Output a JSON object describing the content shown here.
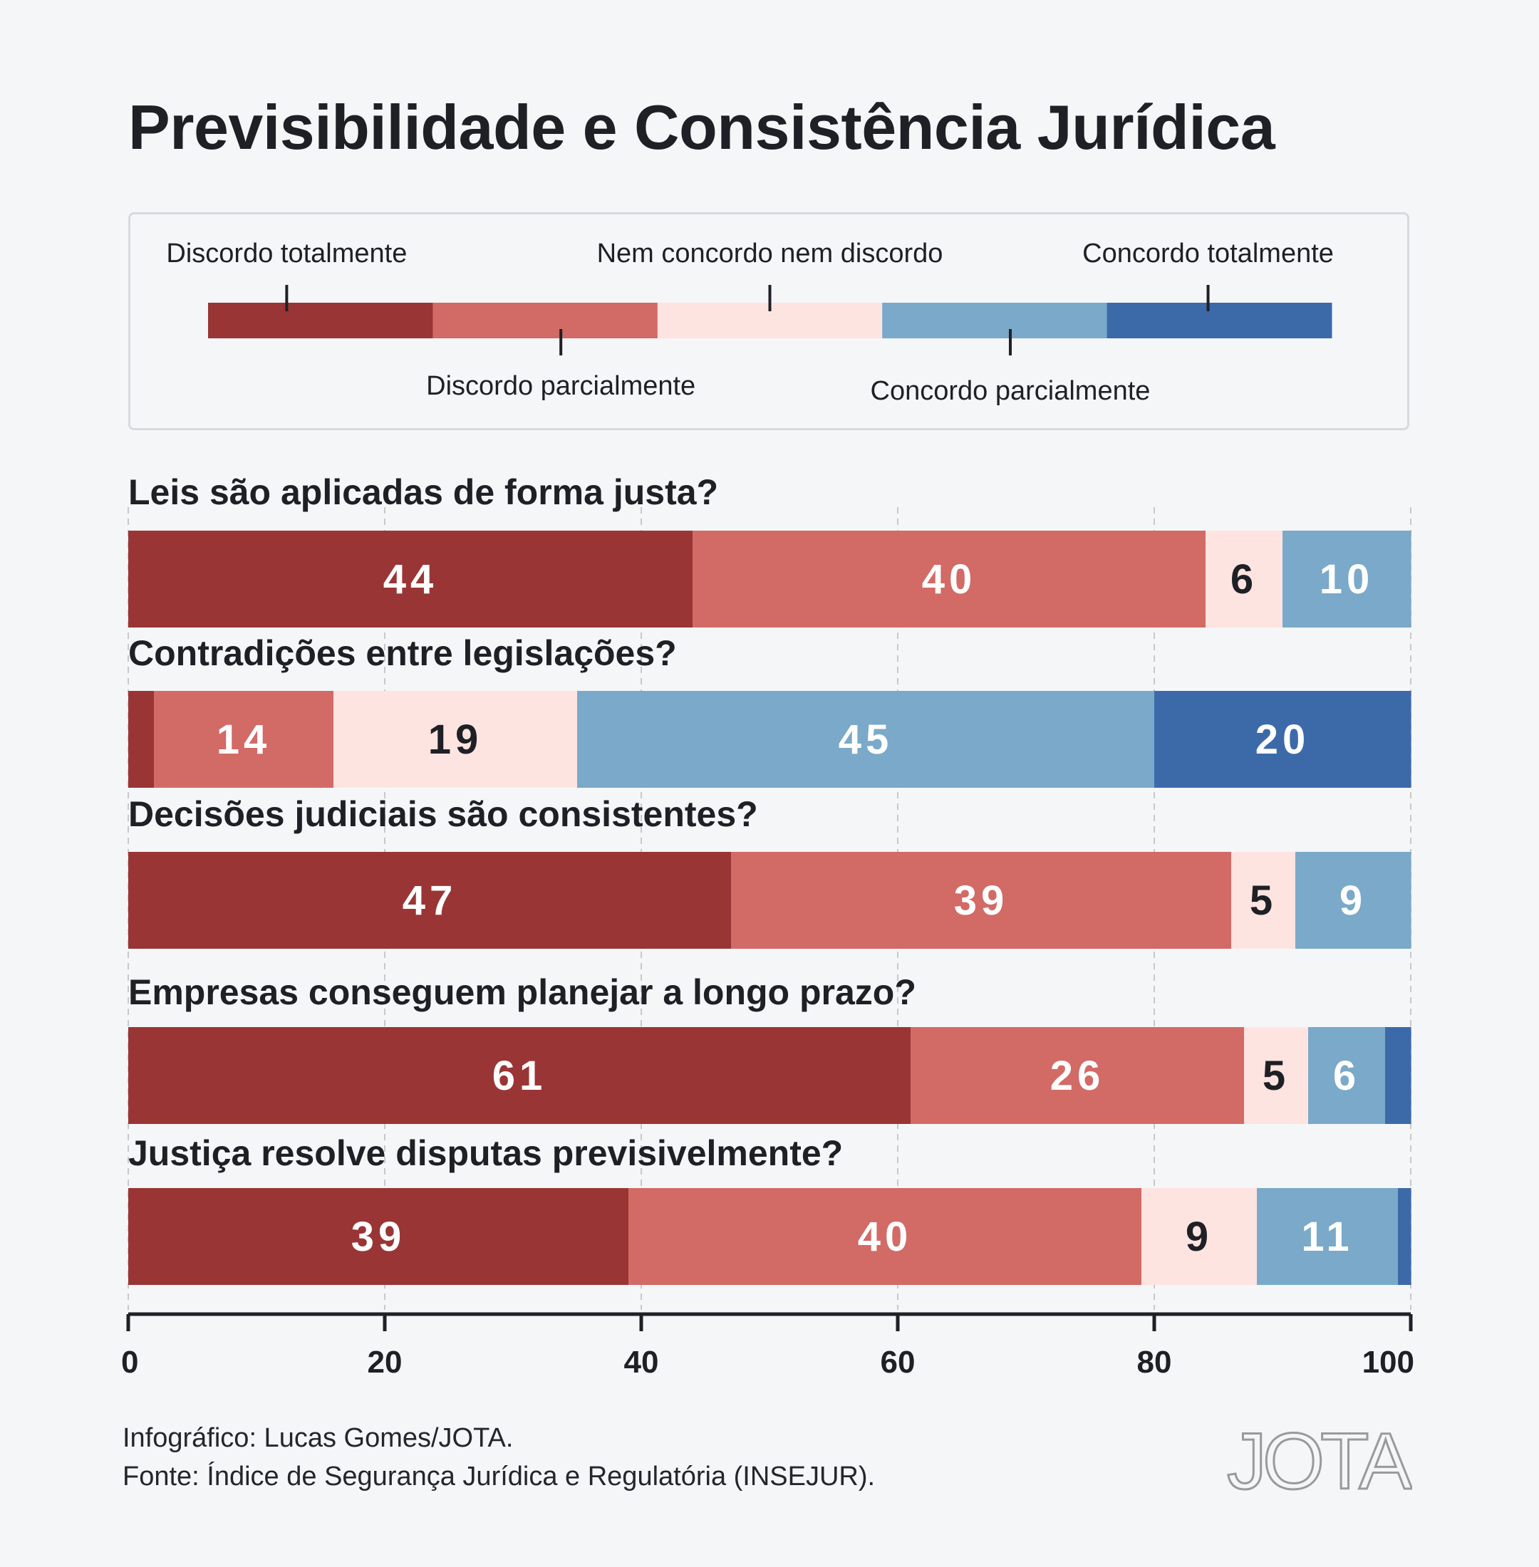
{
  "title": "Previsibilidade e Consistência Jurídica",
  "legend": {
    "categories": [
      {
        "label": "Discordo totalmente",
        "color": "#9a3535",
        "label_position": "top"
      },
      {
        "label": "Discordo parcialmente",
        "color": "#d26a66",
        "label_position": "bottom"
      },
      {
        "label": "Nem concordo nem discordo",
        "color": "#fee4e0",
        "label_position": "top"
      },
      {
        "label": "Concordo parcialmente",
        "color": "#7aa9c9",
        "label_position": "bottom"
      },
      {
        "label": "Concordo totalmente",
        "color": "#3c6aa9",
        "label_position": "top"
      }
    ]
  },
  "chart_data": {
    "type": "bar",
    "orientation": "horizontal",
    "stacked": true,
    "categories": [
      "Leis são aplicadas de forma justa?",
      "Contradições entre legislações?",
      "Decisões judiciais são consistentes?",
      "Empresas conseguem planejar a longo prazo?",
      "Justiça resolve disputas previsivelmente?"
    ],
    "series": [
      {
        "name": "Discordo totalmente",
        "color": "#9a3535",
        "values": [
          44,
          2,
          47,
          61,
          39
        ]
      },
      {
        "name": "Discordo parcialmente",
        "color": "#d26a66",
        "values": [
          40,
          14,
          39,
          26,
          40
        ]
      },
      {
        "name": "Nem concordo nem discordo",
        "color": "#fee4e0",
        "values": [
          6,
          19,
          5,
          5,
          9
        ]
      },
      {
        "name": "Concordo parcialmente",
        "color": "#7aa9c9",
        "values": [
          10,
          45,
          9,
          6,
          11
        ]
      },
      {
        "name": "Concordo totalmente",
        "color": "#3c6aa9",
        "values": [
          0,
          20,
          0,
          2,
          1
        ]
      }
    ],
    "data_labels": [
      [
        "44",
        "40",
        "6",
        "10",
        ""
      ],
      [
        "",
        "14",
        "19",
        "45",
        "20"
      ],
      [
        "47",
        "39",
        "5",
        "9",
        ""
      ],
      [
        "61",
        "26",
        "5",
        "6",
        ""
      ],
      [
        "39",
        "40",
        "9",
        "11",
        ""
      ]
    ],
    "xlim": [
      0,
      100
    ],
    "xticks": [
      0,
      20,
      40,
      60,
      80,
      100
    ],
    "xtick_labels": [
      "0",
      "20",
      "40",
      "60",
      "80",
      "100"
    ],
    "grid": "vertical dashed"
  },
  "footer": {
    "credit": "Infográfico: Lucas Gomes/JOTA.",
    "source": "Fonte: Índice de Segurança Jurídica e Regulatória (INSEJUR)."
  },
  "brand": {
    "logo_text": "JOTA"
  }
}
